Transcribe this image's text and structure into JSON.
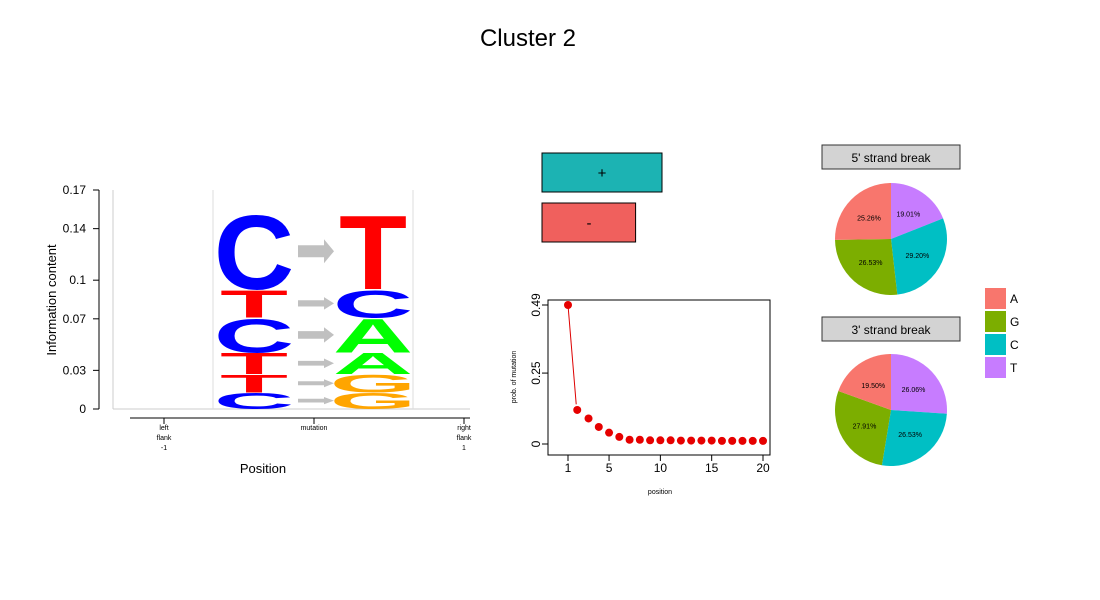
{
  "title": "Cluster 2",
  "colors": {
    "A": "#F8766D",
    "G": "#7CAE00",
    "C": "#00BFC4",
    "T": "#C77CFF",
    "strand_plus": "#1CB3B3",
    "strand_minus": "#F0605D"
  },
  "chart_data": [
    {
      "type": "sequence-logo",
      "ylabel": "Information content",
      "xlabel": "Position",
      "ylim": [
        0,
        0.17
      ],
      "yticks": [
        "0",
        "0.03",
        "0.07",
        "0.1",
        "0.14",
        "0.17"
      ],
      "xticks": [
        {
          "lines": [
            "left",
            "flank",
            "-1"
          ]
        },
        {
          "lines": [
            "mutation"
          ]
        },
        {
          "lines": [
            "right",
            "flank",
            "1"
          ]
        }
      ],
      "mutations": [
        {
          "from": "C",
          "to": "T",
          "height": 0.059
        },
        {
          "from": "T",
          "to": "C",
          "height": 0.022
        },
        {
          "from": "C",
          "to": "A",
          "height": 0.027
        },
        {
          "from": "T",
          "to": "A",
          "height": 0.017
        },
        {
          "from": "T",
          "to": "G",
          "height": 0.014
        },
        {
          "from": "C",
          "to": "G",
          "height": 0.013
        }
      ]
    },
    {
      "type": "bar",
      "categories": [
        "+",
        "-"
      ],
      "values": [
        1.0,
        0.78
      ]
    },
    {
      "type": "scatter",
      "xlabel": "position",
      "ylabel": "prob. of mutation",
      "xlim": [
        1,
        20
      ],
      "ylim": [
        0,
        0.49
      ],
      "xticks": [
        "1",
        "5",
        "10",
        "15",
        "20"
      ],
      "yticks": [
        "0",
        "0.25",
        "0.49"
      ],
      "x": [
        1,
        2,
        3,
        4,
        5,
        6,
        7,
        8,
        9,
        10,
        11,
        12,
        13,
        14,
        15,
        16,
        17,
        18,
        19,
        20
      ],
      "y": [
        0.49,
        0.12,
        0.09,
        0.06,
        0.04,
        0.025,
        0.015,
        0.015,
        0.013,
        0.013,
        0.013,
        0.012,
        0.012,
        0.012,
        0.012,
        0.011,
        0.011,
        0.011,
        0.011,
        0.011
      ]
    },
    {
      "type": "pie",
      "title": "5' strand break",
      "slices": [
        {
          "label": "T",
          "value": 19.01,
          "text": "19.01%"
        },
        {
          "label": "C",
          "value": 29.2,
          "text": "29.20%"
        },
        {
          "label": "G",
          "value": 26.53,
          "text": "26.53%"
        },
        {
          "label": "A",
          "value": 25.26,
          "text": "25.26%"
        }
      ]
    },
    {
      "type": "pie",
      "title": "3' strand break",
      "slices": [
        {
          "label": "T",
          "value": 26.06,
          "text": "26.06%"
        },
        {
          "label": "C",
          "value": 26.53,
          "text": "26.53%"
        },
        {
          "label": "G",
          "value": 27.91,
          "text": "27.91%"
        },
        {
          "label": "A",
          "value": 19.5,
          "text": "19.50%"
        }
      ]
    }
  ],
  "legend": [
    "A",
    "G",
    "C",
    "T"
  ]
}
